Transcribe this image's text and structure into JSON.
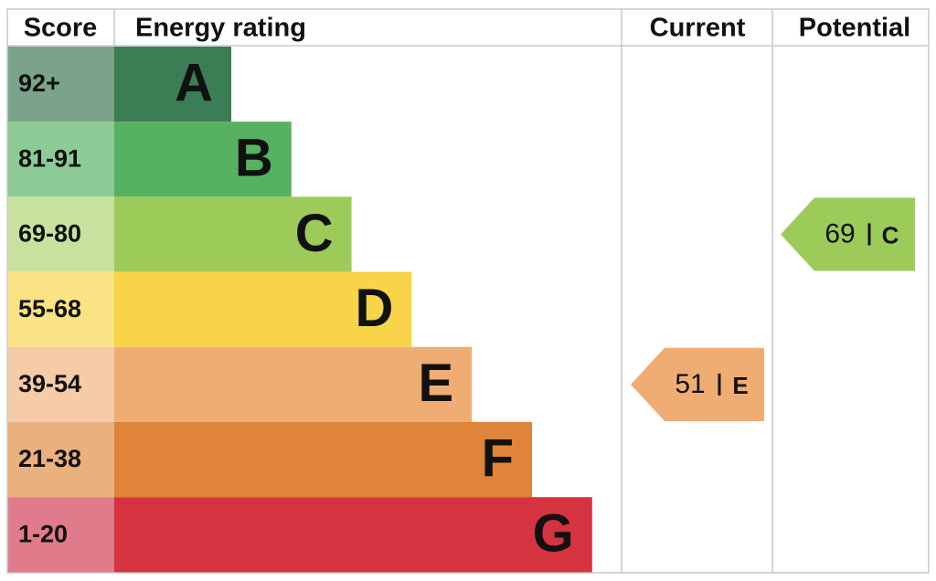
{
  "headers": {
    "score": "Score",
    "rating": "Energy rating",
    "current": "Current",
    "potential": "Potential"
  },
  "bands": [
    {
      "score": "92+",
      "letter": "A",
      "color": "#3b7d55",
      "light": "#7aa38a"
    },
    {
      "score": "81-91",
      "letter": "B",
      "color": "#56b260",
      "light": "#8ccb95"
    },
    {
      "score": "69-80",
      "letter": "C",
      "color": "#9ccb5a",
      "light": "#c7e29e"
    },
    {
      "score": "55-68",
      "letter": "D",
      "color": "#f8d448",
      "light": "#fae384"
    },
    {
      "score": "39-54",
      "letter": "E",
      "color": "#efad74",
      "light": "#f5cba8"
    },
    {
      "score": "21-38",
      "letter": "F",
      "color": "#e0843a",
      "light": "#eab07e"
    },
    {
      "score": "1-20",
      "letter": "G",
      "color": "#d53340",
      "light": "#e07b8b"
    }
  ],
  "current": {
    "value": 51,
    "letter": "E"
  },
  "potential": {
    "value": 69,
    "letter": "C"
  }
}
